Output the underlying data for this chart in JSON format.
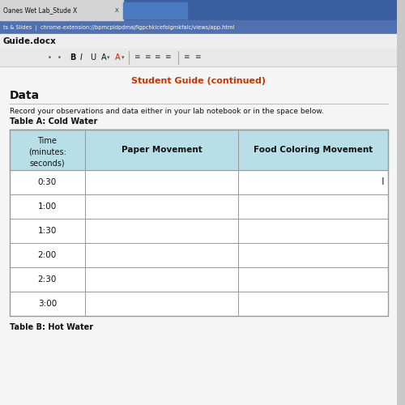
{
  "browser_tab": "Oanes Wet Lab_Stude X",
  "url_bar": "ts & Slides  |  chrome-extension://bpmcpldpdmajfigpchkicefoigmkfalc/views/app.html",
  "file_name": "Guide.docx",
  "centered_title": "Student Guide (continued)",
  "centered_title_color": "#cc3300",
  "section_header": "Data",
  "instruction_text": "Record your observations and data either in your lab notebook or in the space below.",
  "table_title": "Table A: Cold Water",
  "table_footer": "Table B: Hot Water",
  "col_headers_line1": [
    "Time",
    "Paper Movement",
    "Food Coloring Movement"
  ],
  "col_headers_line2": [
    "(minutes:",
    "",
    ""
  ],
  "col_headers_line3": [
    "seconds)",
    "",
    ""
  ],
  "time_rows": [
    "0:30",
    "1:00",
    "1:30",
    "2:00",
    "2:30",
    "3:00"
  ],
  "header_bg_color": "#b8dfe8",
  "table_border_color": "#999999",
  "bg_color": "#c8c8c8",
  "content_bg": "#f5f5f5",
  "tab_active_color": "#d0d0d0",
  "tab_bar_color": "#3a5fa0",
  "url_bar_color": "#5a80c0",
  "doc_area_color": "#f0f0f0",
  "toolbar_color": "#e0e0e0"
}
